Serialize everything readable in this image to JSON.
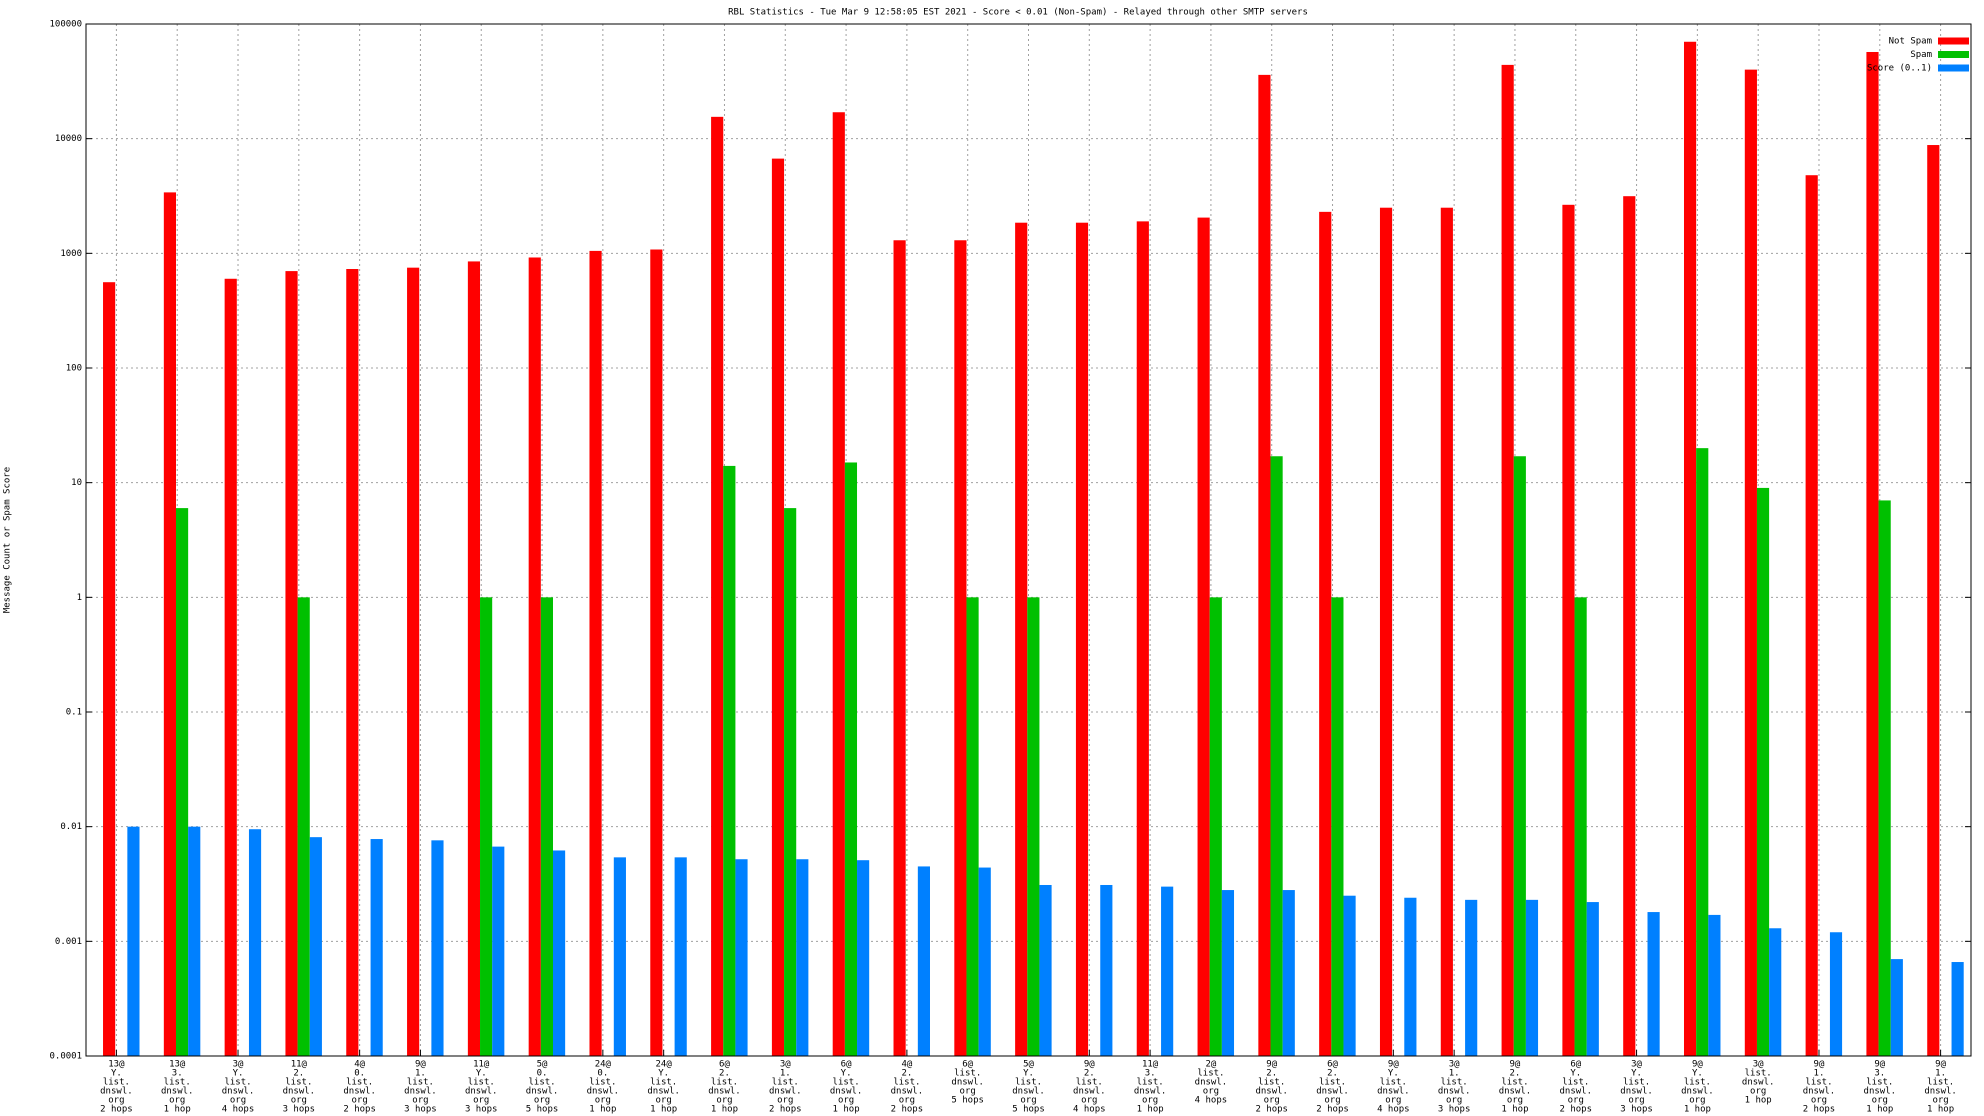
{
  "chart_data": {
    "type": "bar",
    "title": "RBL Statistics - Tue Mar  9 12:58:05 EST 2021 - Score < 0.01 (Non-Spam) - Relayed through other SMTP servers",
    "y_label": "Message Count or Spam Score",
    "log_scale": true,
    "grid": true,
    "legend": "upper right",
    "categories": [
      [
        "13@",
        "Y.",
        "list.",
        "dnswl.",
        "org",
        "2 hops"
      ],
      [
        "13@",
        "3.",
        "list.",
        "dnswl.",
        "org",
        "1 hop"
      ],
      [
        "3@",
        "Y.",
        "list.",
        "dnswl.",
        "org",
        "4 hops"
      ],
      [
        "11@",
        "2.",
        "list.",
        "dnswl.",
        "org",
        "3 hops"
      ],
      [
        "4@",
        "0.",
        "list.",
        "dnswl.",
        "org",
        "2 hops"
      ],
      [
        "9@",
        "1.",
        "list.",
        "dnswl.",
        "org",
        "3 hops"
      ],
      [
        "11@",
        "Y.",
        "list.",
        "dnswl.",
        "org",
        "3 hops"
      ],
      [
        "5@",
        "0.",
        "list.",
        "dnswl.",
        "org",
        "5 hops"
      ],
      [
        "24@",
        "0.",
        "list.",
        "dnswl.",
        "org",
        "1 hop"
      ],
      [
        "24@",
        "Y.",
        "list.",
        "dnswl.",
        "org",
        "1 hop"
      ],
      [
        "6@",
        "2.",
        "list.",
        "dnswl.",
        "org",
        "1 hop"
      ],
      [
        "3@",
        "1.",
        "list.",
        "dnswl.",
        "org",
        "2 hops"
      ],
      [
        "6@",
        "Y.",
        "list.",
        "dnswl.",
        "org",
        "1 hop"
      ],
      [
        "4@",
        "2.",
        "list.",
        "dnswl.",
        "org",
        "2 hops"
      ],
      [
        "6@",
        "list.",
        "dnswl.",
        "org",
        "5 hops"
      ],
      [
        "5@",
        "Y.",
        "list.",
        "dnswl.",
        "org",
        "5 hops"
      ],
      [
        "9@",
        "2.",
        "list.",
        "dnswl.",
        "org",
        "4 hops"
      ],
      [
        "11@",
        "3.",
        "list.",
        "dnswl.",
        "org",
        "1 hop"
      ],
      [
        "2@",
        "list.",
        "dnswl.",
        "org",
        "4 hops"
      ],
      [
        "9@",
        "2.",
        "list.",
        "dnswl.",
        "org",
        "2 hops"
      ],
      [
        "6@",
        "2.",
        "list.",
        "dnswl.",
        "org",
        "2 hops"
      ],
      [
        "9@",
        "Y.",
        "list.",
        "dnswl.",
        "org",
        "4 hops"
      ],
      [
        "3@",
        "1.",
        "list.",
        "dnswl.",
        "org",
        "3 hops"
      ],
      [
        "9@",
        "2.",
        "list.",
        "dnswl.",
        "org",
        "1 hop"
      ],
      [
        "6@",
        "Y.",
        "list.",
        "dnswl.",
        "org",
        "2 hops"
      ],
      [
        "3@",
        "Y.",
        "list.",
        "dnswl.",
        "org",
        "3 hops"
      ],
      [
        "9@",
        "Y.",
        "list.",
        "dnswl.",
        "org",
        "1 hop"
      ],
      [
        "3@",
        "list.",
        "dnswl.",
        "org",
        "1 hop"
      ],
      [
        "9@",
        "1.",
        "list.",
        "dnswl.",
        "org",
        "2 hops"
      ],
      [
        "9@",
        "3.",
        "list.",
        "dnswl.",
        "org",
        "1 hop"
      ],
      [
        "9@",
        "1.",
        "list.",
        "dnswl.",
        "org",
        "1 hop"
      ]
    ],
    "series": [
      {
        "name": "Not Spam",
        "color": "#ff0000",
        "values": [
          560,
          3400,
          600,
          700,
          730,
          750,
          850,
          920,
          1050,
          1080,
          15500,
          6700,
          17000,
          1300,
          1300,
          1850,
          1850,
          1900,
          2050,
          36000,
          2300,
          2500,
          2500,
          44000,
          2650,
          3150,
          70000,
          40000,
          4800,
          57000,
          8800
        ]
      },
      {
        "name": "Spam",
        "color": "#00c000",
        "values": [
          null,
          6,
          null,
          1,
          null,
          null,
          1,
          1,
          null,
          null,
          14,
          6,
          15,
          null,
          1,
          1,
          null,
          null,
          1,
          17,
          1,
          null,
          null,
          17,
          1,
          null,
          20,
          9,
          null,
          7,
          null
        ]
      },
      {
        "name": "Score (0..1)",
        "color": "#0080ff",
        "values": [
          0.01,
          0.01,
          0.0095,
          0.0081,
          0.0078,
          0.0076,
          0.0067,
          0.0062,
          0.0054,
          0.0054,
          0.0052,
          0.0052,
          0.0051,
          0.0045,
          0.0044,
          0.0031,
          0.0031,
          0.003,
          0.0028,
          0.0028,
          0.0025,
          0.0024,
          0.0023,
          0.0023,
          0.0022,
          0.0018,
          0.0017,
          0.0013,
          0.0012,
          0.0007,
          0.00066
        ]
      }
    ],
    "ylim": [
      0.0001,
      100000
    ],
    "yticks": [
      0.0001,
      0.001,
      0.01,
      0.1,
      1,
      10,
      100,
      1000,
      10000,
      100000
    ]
  }
}
